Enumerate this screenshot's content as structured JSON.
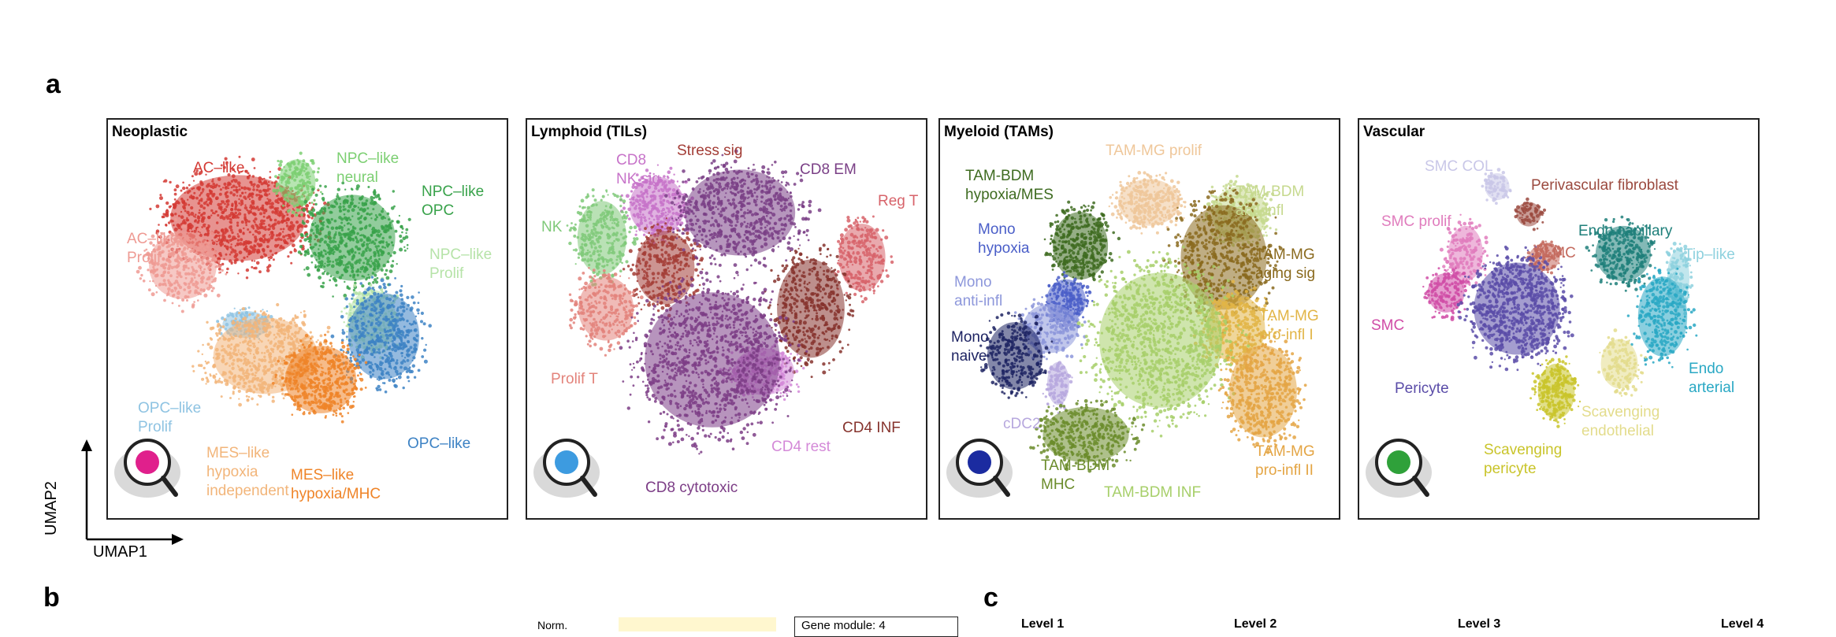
{
  "labels": {
    "a": "a",
    "b": "b",
    "c": "c"
  },
  "axes": {
    "x": "UMAP1",
    "y": "UMAP2"
  },
  "panels": [
    {
      "title": "Neoplastic",
      "icon": "magnifier-icon",
      "icon_color": "#e0208c",
      "clusters": [
        {
          "text": "AC–like",
          "color": "#d43a34"
        },
        {
          "text": "NPC–like\nneural",
          "color": "#7ccf72"
        },
        {
          "text": "NPC–like\nOPC",
          "color": "#38a24a"
        },
        {
          "text": "AC–like\nProlif",
          "color": "#ee9a93"
        },
        {
          "text": "NPC–like\nProlif",
          "color": "#b6e3a8"
        },
        {
          "text": "OPC–like\nProlif",
          "color": "#8ec3e2"
        },
        {
          "text": "OPC–like",
          "color": "#3d82c4"
        },
        {
          "text": "MES–like\nhypoxia\nindependent",
          "color": "#f2b57a"
        },
        {
          "text": "MES–like\nhypoxia/MHC",
          "color": "#ef8428"
        }
      ]
    },
    {
      "title": "Lymphoid (TILs)",
      "icon": "magnifier-icon",
      "icon_color": "#3d9be0",
      "clusters": [
        {
          "text": "CD8\nNK sig",
          "color": "#c773c9"
        },
        {
          "text": "Stress sig",
          "color": "#a33d36"
        },
        {
          "text": "CD8 EM",
          "color": "#7a3f86"
        },
        {
          "text": "Reg T",
          "color": "#d7636a"
        },
        {
          "text": "NK",
          "color": "#7fc979"
        },
        {
          "text": "Prolif T",
          "color": "#e3837b"
        },
        {
          "text": "CD4 INF",
          "color": "#86332d"
        },
        {
          "text": "CD4 rest",
          "color": "#d48ad8"
        },
        {
          "text": "CD8 cytotoxic",
          "color": "#7c3d86"
        }
      ]
    },
    {
      "title": "Myeloid (TAMs)",
      "icon": "magnifier-icon",
      "icon_color": "#1b2ba0",
      "clusters": [
        {
          "text": "TAM-MG prolif",
          "color": "#efc79a"
        },
        {
          "text": "TAM-BDM\nhypoxia/MES",
          "color": "#3e6b20"
        },
        {
          "text": "TAM-BDM\nanti-infl",
          "color": "#c6d98e"
        },
        {
          "text": "Mono\nhypoxia",
          "color": "#4a5ec8"
        },
        {
          "text": "TAM-MG\naging sig",
          "color": "#8a6a1e"
        },
        {
          "text": "Mono\nanti-infl",
          "color": "#8d97db"
        },
        {
          "text": "TAM-MG\npro-infl I",
          "color": "#e2b547"
        },
        {
          "text": "Mono\nnaive",
          "color": "#1e2463"
        },
        {
          "text": "cDC2",
          "color": "#b7a8de"
        },
        {
          "text": "TAM-BDM\nMHC",
          "color": "#6b8c2b"
        },
        {
          "text": "TAM-BDM INF",
          "color": "#a7cf6a"
        },
        {
          "text": "TAM-MG\npro-infl II",
          "color": "#e4a544"
        }
      ]
    },
    {
      "title": "Vascular",
      "icon": "magnifier-icon",
      "icon_color": "#2fa13a",
      "clusters": [
        {
          "text": "SMC COL",
          "color": "#c9c7e8"
        },
        {
          "text": "Perivascular fibroblast",
          "color": "#9b4a3f"
        },
        {
          "text": "SMC prolif",
          "color": "#e07cbd"
        },
        {
          "text": "Endo capillary",
          "color": "#1e7f7a"
        },
        {
          "text": "VLMC",
          "color": "#c46a5e"
        },
        {
          "text": "Tip–like",
          "color": "#8ed1de"
        },
        {
          "text": "SMC",
          "color": "#d04ca6"
        },
        {
          "text": "Endo\narterial",
          "color": "#29a8c4"
        },
        {
          "text": "Pericyte",
          "color": "#5a4ca8"
        },
        {
          "text": "Scavenging\nendothelial",
          "color": "#e3dc8c"
        },
        {
          "text": "Scavenging\npericyte",
          "color": "#c9c42a"
        }
      ]
    }
  ],
  "panel_b": {
    "norm_label": "Norm.",
    "module_label": "Gene module: 4"
  },
  "panel_c": {
    "levels": [
      "Level 1",
      "Level 2",
      "Level 3",
      "Level 4"
    ]
  }
}
